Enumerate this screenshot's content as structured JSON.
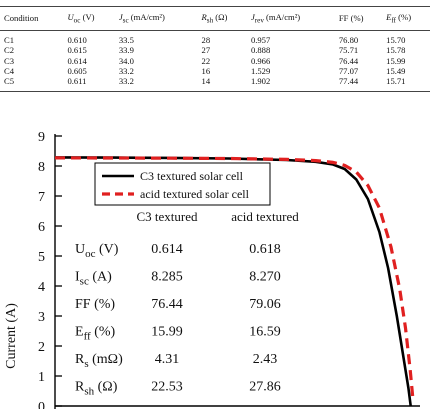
{
  "table": {
    "headers": [
      {
        "sym": "Condition",
        "rest": ""
      },
      {
        "sym": "U",
        "sub": "oc",
        "rest": " (V)"
      },
      {
        "sym": "J",
        "sub": "sc",
        "rest": " (mA/cm²)"
      },
      {
        "sym": "R",
        "sub": "sh",
        "rest": " (Ω)"
      },
      {
        "sym": "J",
        "sub": "rev",
        "rest": " (mA/cm²)"
      },
      {
        "sym": "FF",
        "rest": " (%)"
      },
      {
        "sym": "E",
        "sub": "ff",
        "rest": " (%)"
      }
    ],
    "rows": [
      [
        "C1",
        "0.610",
        "33.5",
        "28",
        "0.957",
        "76.80",
        "15.70"
      ],
      [
        "C2",
        "0.615",
        "33.9",
        "27",
        "0.888",
        "75.71",
        "15.78"
      ],
      [
        "C3",
        "0.614",
        "34.0",
        "22",
        "0.966",
        "76.44",
        "15.99"
      ],
      [
        "C4",
        "0.605",
        "33.2",
        "16",
        "1.529",
        "77.07",
        "15.49"
      ],
      [
        "C5",
        "0.611",
        "33.2",
        "14",
        "1.902",
        "77.44",
        "15.71"
      ]
    ]
  },
  "chart_data": {
    "type": "line",
    "ylabel": "Current (A)",
    "xlabel": "",
    "ylim": [
      0,
      9
    ],
    "yticks": [
      "0",
      "1",
      "2",
      "3",
      "4",
      "5",
      "6",
      "7",
      "8",
      "9"
    ],
    "xlim": [
      0,
      0.63
    ],
    "series": [
      {
        "name": "C3 textured solar cell",
        "color": "#000000",
        "dash": "solid",
        "x": [
          0,
          0.1,
          0.2,
          0.3,
          0.4,
          0.45,
          0.48,
          0.5,
          0.52,
          0.54,
          0.56,
          0.575,
          0.59,
          0.6,
          0.61,
          0.614
        ],
        "y": [
          8.285,
          8.28,
          8.27,
          8.25,
          8.2,
          8.14,
          8.05,
          7.9,
          7.55,
          6.9,
          5.8,
          4.6,
          3.0,
          1.8,
          0.6,
          0
        ]
      },
      {
        "name": "acid textured solar cell",
        "color": "#e02020",
        "dash": "dashed",
        "x": [
          0,
          0.1,
          0.2,
          0.3,
          0.4,
          0.45,
          0.48,
          0.5,
          0.52,
          0.54,
          0.56,
          0.58,
          0.595,
          0.605,
          0.613,
          0.618
        ],
        "y": [
          8.27,
          8.265,
          8.26,
          8.25,
          8.22,
          8.18,
          8.12,
          8.02,
          7.8,
          7.35,
          6.6,
          5.3,
          3.9,
          2.6,
          1.2,
          0.2
        ]
      }
    ],
    "inset_table": {
      "col_headers": [
        "C3 textured",
        "acid textured"
      ],
      "rows": [
        {
          "label": "U",
          "sub": "oc",
          "unit": "(V)",
          "values": [
            "0.614",
            "0.618"
          ]
        },
        {
          "label": "I",
          "sub": "sc",
          "unit": "(A)",
          "values": [
            "8.285",
            "8.270"
          ]
        },
        {
          "label": "FF",
          "sub": "",
          "unit": "(%)",
          "values": [
            "76.44",
            "79.06"
          ]
        },
        {
          "label": "E",
          "sub": "ff",
          "unit": "(%)",
          "values": [
            "15.99",
            "16.59"
          ]
        },
        {
          "label": "R",
          "sub": "s",
          "unit": "(mΩ)",
          "values": [
            "4.31",
            "2.43"
          ]
        },
        {
          "label": "R",
          "sub": "sh",
          "unit": "(Ω)",
          "values": [
            "22.53",
            "27.86"
          ]
        }
      ]
    }
  }
}
